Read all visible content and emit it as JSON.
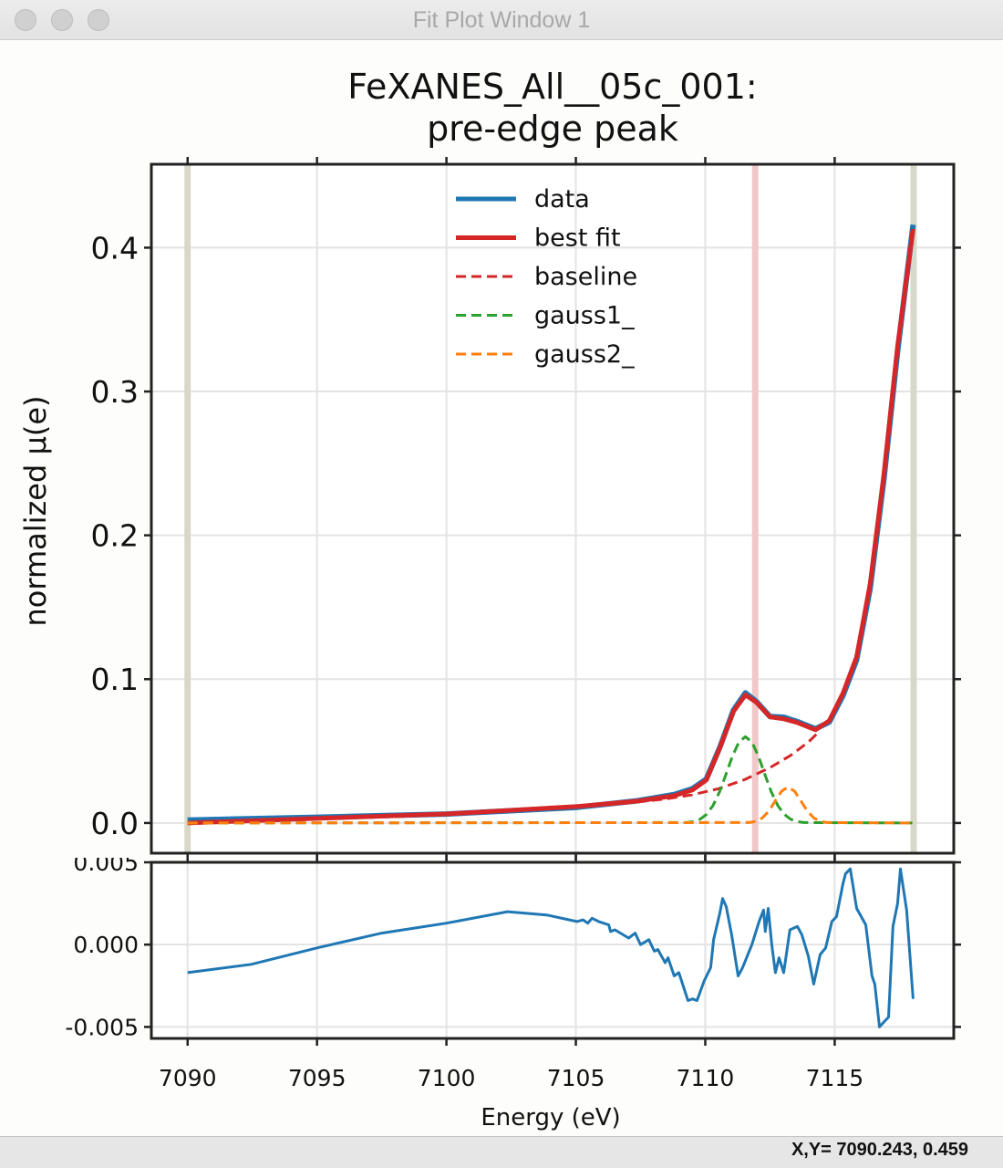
{
  "window": {
    "title": "Fit Plot Window 1",
    "buttons": [
      "close",
      "minimize",
      "zoom"
    ]
  },
  "status": {
    "readout": "X,Y= 7090.243, 0.459"
  },
  "chart_data": [
    {
      "type": "line",
      "title": "FeXANES_All__05c_001:",
      "subtitle": "pre-edge peak",
      "xlabel": "Energy (eV)",
      "ylabel": "normalized μ(e)",
      "xlim": [
        7088.6,
        7119.6
      ],
      "ylim": [
        -0.021,
        0.458
      ],
      "xticks": [
        7090,
        7095,
        7100,
        7105,
        7110,
        7115
      ],
      "yticks": [
        0.0,
        0.1,
        0.2,
        0.3,
        0.4
      ],
      "ytick_labels": [
        "0.0",
        "0.1",
        "0.2",
        "0.3",
        "0.4"
      ],
      "grid": true,
      "legend_position": "top-center",
      "vertical_bands": [
        {
          "x": 7090.0,
          "color": "#d8d8c8"
        },
        {
          "x": 7118.05,
          "color": "#d8d8c8"
        },
        {
          "x": 7111.93,
          "color": "#f0c8c8"
        }
      ],
      "series": [
        {
          "name": "data",
          "color": "#1f77b4",
          "style": "solid",
          "x": [
            7090,
            7095,
            7100,
            7105,
            7107.39,
            7108.8,
            7109.5,
            7110.04,
            7110.56,
            7111.09,
            7111.55,
            7111.97,
            7112.5,
            7113.03,
            7113.56,
            7114.26,
            7114.79,
            7115.32,
            7115.85,
            7116.37,
            7116.9,
            7117.43,
            7118.03
          ],
          "y": [
            0.002,
            0.004,
            0.0062,
            0.0108,
            0.0155,
            0.0198,
            0.0238,
            0.0305,
            0.0525,
            0.0785,
            0.0905,
            0.0845,
            0.074,
            0.0735,
            0.0705,
            0.0655,
            0.0702,
            0.0885,
            0.1135,
            0.163,
            0.239,
            0.328,
            0.416
          ]
        },
        {
          "name": "best fit",
          "color": "#d62728",
          "style": "solid",
          "x": [
            7090,
            7095,
            7100,
            7105,
            7107.39,
            7108.8,
            7109.5,
            7110.04,
            7110.56,
            7111.09,
            7111.55,
            7111.97,
            7112.5,
            7113.03,
            7113.56,
            7114.26,
            7114.79,
            7115.32,
            7115.85,
            7116.37,
            7116.9,
            7117.43,
            7118.03
          ],
          "y": [
            0.0,
            0.0032,
            0.0063,
            0.0114,
            0.0152,
            0.019,
            0.0229,
            0.0298,
            0.0521,
            0.0775,
            0.089,
            0.084,
            0.0737,
            0.0724,
            0.0698,
            0.0648,
            0.0711,
            0.0902,
            0.1156,
            0.1663,
            0.2425,
            0.3314,
            0.413
          ]
        },
        {
          "name": "baseline",
          "color": "#d62728",
          "style": "dashed",
          "x": [
            7090,
            7095,
            7100,
            7105,
            7107,
            7108.5,
            7109.5,
            7110.5,
            7111.5,
            7112.5,
            7113.3,
            7114,
            7114.4
          ],
          "y": [
            0.0,
            0.0032,
            0.0063,
            0.0108,
            0.0138,
            0.0168,
            0.0196,
            0.0238,
            0.03,
            0.0385,
            0.047,
            0.0565,
            0.0635
          ]
        },
        {
          "name": "gauss1_",
          "color": "#2ca02c",
          "style": "dashed",
          "x": [
            7090,
            7109.3,
            7109.55,
            7109.8,
            7110.05,
            7110.3,
            7110.55,
            7110.8,
            7111.05,
            7111.3,
            7111.55,
            7111.8,
            7112.05,
            7112.3,
            7112.55,
            7112.8,
            7113.05,
            7113.3,
            7113.55,
            7113.8,
            7118
          ],
          "y": [
            0.0,
            0.0003,
            0.001,
            0.0026,
            0.006,
            0.0122,
            0.0216,
            0.0338,
            0.0465,
            0.0563,
            0.06,
            0.0563,
            0.0465,
            0.0338,
            0.0216,
            0.0122,
            0.006,
            0.0026,
            0.001,
            0.0003,
            0.0
          ]
        },
        {
          "name": "gauss2_",
          "color": "#ff7f0e",
          "style": "dashed",
          "x": [
            7090,
            7111.7,
            7111.95,
            7112.2,
            7112.45,
            7112.7,
            7112.95,
            7113.2,
            7113.45,
            7113.7,
            7113.95,
            7114.2,
            7114.45,
            7114.7,
            7118
          ],
          "y": [
            0.0,
            0.0003,
            0.0011,
            0.0034,
            0.0081,
            0.0152,
            0.0221,
            0.025,
            0.0221,
            0.0152,
            0.0081,
            0.0034,
            0.0011,
            0.0003,
            0.0
          ]
        }
      ]
    },
    {
      "type": "line",
      "xlabel": "Energy (eV)",
      "xlim": [
        7088.6,
        7119.6
      ],
      "ylim": [
        -0.0057,
        0.005
      ],
      "xticks": [
        7090,
        7095,
        7100,
        7105,
        7110,
        7115
      ],
      "xtick_labels": [
        "7090",
        "7095",
        "7100",
        "7105",
        "7110",
        "7115"
      ],
      "yticks": [
        0.005,
        0.0,
        -0.005
      ],
      "ytick_labels": [
        "0.005",
        "0.000",
        "-0.005"
      ],
      "grid": true,
      "series": [
        {
          "color": "#1f77b4",
          "x": [
            7090,
            7092.46,
            7095,
            7097.5,
            7100,
            7102.36,
            7103.87,
            7105.04,
            7105.28,
            7105.46,
            7105.63,
            7105.88,
            7106.27,
            7106.34,
            7106.51,
            7107.04,
            7107.29,
            7107.5,
            7107.82,
            7108.03,
            7108.17,
            7108.45,
            7108.56,
            7108.8,
            7108.98,
            7109.33,
            7109.51,
            7109.68,
            7109.96,
            7110.21,
            7110.32,
            7110.56,
            7110.67,
            7110.81,
            7111.02,
            7111.27,
            7111.44,
            7111.8,
            7112.08,
            7112.25,
            7112.32,
            7112.43,
            7112.57,
            7112.71,
            7112.85,
            7113.03,
            7113.27,
            7113.56,
            7113.73,
            7113.98,
            7114.19,
            7114.44,
            7114.65,
            7114.89,
            7115.07,
            7115.32,
            7115.42,
            7115.6,
            7115.85,
            7116.2,
            7116.44,
            7116.55,
            7116.73,
            7116.9,
            7117.08,
            7117.25,
            7117.43,
            7117.54,
            7117.78,
            7118.03
          ],
          "y": [
            -0.0017,
            -0.0012,
            -0.0002,
            0.0007,
            0.0013,
            0.002,
            0.0018,
            0.0014,
            0.0015,
            0.0013,
            0.0016,
            0.0014,
            0.0012,
            0.0008,
            0.0009,
            0.0004,
            0.0007,
            0.0,
            0.0003,
            -0.0004,
            -0.0003,
            -0.0011,
            -0.0008,
            -0.0019,
            -0.0017,
            -0.0034,
            -0.0033,
            -0.0034,
            -0.0022,
            -0.0014,
            0.0003,
            0.0019,
            0.0028,
            0.0023,
            0.0006,
            -0.0019,
            -0.0014,
            0.0,
            0.0014,
            0.0021,
            0.0008,
            0.0022,
            0.0,
            -0.0017,
            -0.0008,
            -0.0017,
            0.0009,
            0.0011,
            0.0006,
            -0.0007,
            -0.0024,
            -0.0006,
            -0.0002,
            0.0014,
            0.0017,
            0.0037,
            0.0043,
            0.0046,
            0.0022,
            0.0012,
            -0.0019,
            -0.0024,
            -0.005,
            -0.0047,
            -0.0044,
            0.0011,
            0.0025,
            0.0046,
            0.0021,
            -0.0033
          ]
        }
      ]
    }
  ]
}
